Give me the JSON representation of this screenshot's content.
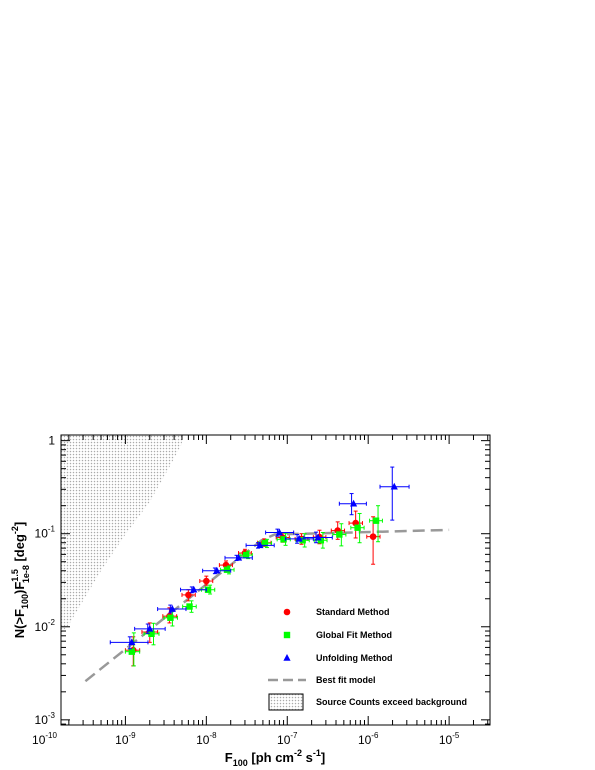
{
  "chart_data": {
    "type": "scatter",
    "x_scale": "log",
    "y_scale": "log",
    "xlim": [
      1.6e-10,
      3.2e-05
    ],
    "ylim": [
      0.00088,
      1.15
    ],
    "grid": false,
    "legend_placement": "bottom-right",
    "x_ticks": [
      {
        "value": 1e-10,
        "base": "10",
        "exp": "-10"
      },
      {
        "value": 1e-09,
        "base": "10",
        "exp": "-9"
      },
      {
        "value": 1e-08,
        "base": "10",
        "exp": "-8"
      },
      {
        "value": 1e-07,
        "base": "10",
        "exp": "-7"
      },
      {
        "value": 1e-06,
        "base": "10",
        "exp": "-6"
      },
      {
        "value": 1e-05,
        "base": "10",
        "exp": "-5"
      }
    ],
    "y_ticks": [
      {
        "value": 0.001,
        "base": "10",
        "exp": "-3"
      },
      {
        "value": 0.01,
        "base": "10",
        "exp": "-2"
      },
      {
        "value": 0.1,
        "base": "10",
        "exp": "-1"
      },
      {
        "value": 1,
        "base": "1",
        "exp": ""
      }
    ],
    "xlabel": {
      "main": "F",
      "sub": "100",
      "rest1": " [ph cm",
      "sup1": "-2",
      "rest2": " s",
      "sup2": "-1",
      "rest3": "]"
    },
    "ylabel": {
      "p1": "N(>F",
      "sub1": "100",
      "p2": ")F",
      "sup": "1.5",
      "sub2": "1e-8",
      "p3": " [deg",
      "sup2": "-2",
      "p4": "]"
    },
    "series": [
      {
        "name": "Standard Method",
        "marker": "circle",
        "color": "#ff0000",
        "points": [
          {
            "x": 1.25e-09,
            "y": 0.0056,
            "ylo": 0.0038,
            "yhi": 0.0078,
            "xlo": 1e-09,
            "xhi": 1.5e-09
          },
          {
            "x": 2e-09,
            "y": 0.0088,
            "ylo": 0.0068,
            "yhi": 0.011,
            "xlo": 1.6e-09,
            "xhi": 2.5e-09
          },
          {
            "x": 3.5e-09,
            "y": 0.013,
            "ylo": 0.011,
            "yhi": 0.016,
            "xlo": 2.9e-09,
            "xhi": 4.3e-09
          },
          {
            "x": 6e-09,
            "y": 0.022,
            "ylo": 0.019,
            "yhi": 0.025,
            "xlo": 5e-09,
            "xhi": 7.3e-09
          },
          {
            "x": 1e-08,
            "y": 0.031,
            "ylo": 0.028,
            "yhi": 0.035,
            "xlo": 8.3e-09,
            "xhi": 1.2e-08
          },
          {
            "x": 1.75e-08,
            "y": 0.046,
            "ylo": 0.042,
            "yhi": 0.051,
            "xlo": 1.45e-08,
            "xhi": 2.1e-08
          },
          {
            "x": 3e-08,
            "y": 0.062,
            "ylo": 0.057,
            "yhi": 0.068,
            "xlo": 2.5e-08,
            "xhi": 3.6e-08
          },
          {
            "x": 5.2e-08,
            "y": 0.08,
            "ylo": 0.073,
            "yhi": 0.088,
            "xlo": 4.3e-08,
            "xhi": 6.3e-08
          },
          {
            "x": 8.8e-08,
            "y": 0.091,
            "ylo": 0.081,
            "yhi": 0.102,
            "xlo": 7.3e-08,
            "xhi": 1.06e-07
          },
          {
            "x": 1.5e-07,
            "y": 0.088,
            "ylo": 0.077,
            "yhi": 0.1,
            "xlo": 1.25e-07,
            "xhi": 1.8e-07
          },
          {
            "x": 2.5e-07,
            "y": 0.092,
            "ylo": 0.078,
            "yhi": 0.109,
            "xlo": 2.1e-07,
            "xhi": 3e-07
          },
          {
            "x": 4.2e-07,
            "y": 0.108,
            "ylo": 0.087,
            "yhi": 0.134,
            "xlo": 3.5e-07,
            "xhi": 5.1e-07
          },
          {
            "x": 7e-07,
            "y": 0.13,
            "ylo": 0.09,
            "yhi": 0.175,
            "xlo": 5.8e-07,
            "xhi": 8.5e-07
          },
          {
            "x": 1.15e-06,
            "y": 0.093,
            "ylo": 0.047,
            "yhi": 0.152,
            "xlo": 9.6e-07,
            "xhi": 1.4e-06
          }
        ]
      },
      {
        "name": "Global Fit Method",
        "marker": "square",
        "color": "#00ff00",
        "points": [
          {
            "x": 1.2e-09,
            "y": 0.0054,
            "ylo": 0.0038,
            "yhi": 0.0086,
            "xlo": 1e-09,
            "xhi": 1.5e-09
          },
          {
            "x": 2.1e-09,
            "y": 0.0084,
            "ylo": 0.0064,
            "yhi": 0.0109,
            "xlo": 1.7e-09,
            "xhi": 2.6e-09
          },
          {
            "x": 3.6e-09,
            "y": 0.0125,
            "ylo": 0.0102,
            "yhi": 0.0156,
            "xlo": 3e-09,
            "xhi": 4.4e-09
          },
          {
            "x": 6.2e-09,
            "y": 0.0165,
            "ylo": 0.0143,
            "yhi": 0.019,
            "xlo": 5.1e-09,
            "xhi": 7.5e-09
          },
          {
            "x": 1.05e-08,
            "y": 0.025,
            "ylo": 0.0225,
            "yhi": 0.028,
            "xlo": 8.7e-09,
            "xhi": 1.27e-08
          },
          {
            "x": 1.8e-08,
            "y": 0.041,
            "ylo": 0.037,
            "yhi": 0.045,
            "xlo": 1.5e-08,
            "xhi": 2.2e-08
          },
          {
            "x": 3.1e-08,
            "y": 0.059,
            "ylo": 0.054,
            "yhi": 0.065,
            "xlo": 2.6e-08,
            "xhi": 3.7e-08
          },
          {
            "x": 5.3e-08,
            "y": 0.079,
            "ylo": 0.071,
            "yhi": 0.087,
            "xlo": 4.4e-08,
            "xhi": 6.4e-08
          },
          {
            "x": 9e-08,
            "y": 0.087,
            "ylo": 0.075,
            "yhi": 0.101,
            "xlo": 7.5e-08,
            "xhi": 1.09e-07
          },
          {
            "x": 1.55e-07,
            "y": 0.085,
            "ylo": 0.072,
            "yhi": 0.1,
            "xlo": 1.28e-07,
            "xhi": 1.87e-07
          },
          {
            "x": 2.6e-07,
            "y": 0.085,
            "ylo": 0.07,
            "yhi": 0.103,
            "xlo": 2.15e-07,
            "xhi": 3.1e-07
          },
          {
            "x": 4.4e-07,
            "y": 0.098,
            "ylo": 0.074,
            "yhi": 0.128,
            "xlo": 3.65e-07,
            "xhi": 5.3e-07
          },
          {
            "x": 7.4e-07,
            "y": 0.116,
            "ylo": 0.08,
            "yhi": 0.165,
            "xlo": 6.1e-07,
            "xhi": 8.9e-07
          },
          {
            "x": 1.25e-06,
            "y": 0.138,
            "ylo": 0.082,
            "yhi": 0.2,
            "xlo": 1.04e-06,
            "xhi": 1.5e-06
          }
        ]
      },
      {
        "name": "Unfolding Method",
        "marker": "triangle",
        "color": "#0000ff",
        "points": [
          {
            "x": 1.2e-09,
            "y": 0.0068,
            "ylo": 0.0058,
            "yhi": 0.0078,
            "xlo": 6.5e-10,
            "xhi": 1.9e-09
          },
          {
            "x": 2e-09,
            "y": 0.0095,
            "ylo": 0.0085,
            "yhi": 0.0107,
            "xlo": 1.3e-09,
            "xhi": 3.1e-09
          },
          {
            "x": 3.8e-09,
            "y": 0.0155,
            "ylo": 0.0141,
            "yhi": 0.0171,
            "xlo": 2.5e-09,
            "xhi": 5.6e-09
          },
          {
            "x": 7e-09,
            "y": 0.025,
            "ylo": 0.0232,
            "yhi": 0.0268,
            "xlo": 4.8e-09,
            "xhi": 1e-08
          },
          {
            "x": 1.35e-08,
            "y": 0.04,
            "ylo": 0.0372,
            "yhi": 0.0428,
            "xlo": 9e-09,
            "xhi": 2e-08
          },
          {
            "x": 2.5e-08,
            "y": 0.055,
            "ylo": 0.0515,
            "yhi": 0.0586,
            "xlo": 1.7e-08,
            "xhi": 3.7e-08
          },
          {
            "x": 4.6e-08,
            "y": 0.075,
            "ylo": 0.07,
            "yhi": 0.08,
            "xlo": 3.1e-08,
            "xhi": 6.9e-08
          },
          {
            "x": 8e-08,
            "y": 0.103,
            "ylo": 0.094,
            "yhi": 0.112,
            "xlo": 5.4e-08,
            "xhi": 1.2e-07
          },
          {
            "x": 1.4e-07,
            "y": 0.088,
            "ylo": 0.079,
            "yhi": 0.098,
            "xlo": 9.5e-08,
            "xhi": 2.1e-07
          },
          {
            "x": 2.4e-07,
            "y": 0.091,
            "ylo": 0.08,
            "yhi": 0.104,
            "xlo": 1.6e-07,
            "xhi": 3.6e-07
          },
          {
            "x": 6.6e-07,
            "y": 0.21,
            "ylo": 0.16,
            "yhi": 0.27,
            "xlo": 4.4e-07,
            "xhi": 9.5e-07
          },
          {
            "x": 2.1e-06,
            "y": 0.32,
            "ylo": 0.14,
            "yhi": 0.52,
            "xlo": 1.4e-06,
            "xhi": 3.2e-06
          }
        ]
      }
    ],
    "model": {
      "name": "Best fit model",
      "color": "#999999",
      "style": "dashed",
      "points": [
        {
          "x": 3.2e-10,
          "y": 0.0026
        },
        {
          "x": 4.8e-08,
          "y": 0.085
        },
        {
          "x": 7e-08,
          "y": 0.098
        },
        {
          "x": 1e-05,
          "y": 0.11
        }
      ]
    },
    "background_region": {
      "name": "Source Counts exceed background",
      "pattern": "dotted",
      "color": "#aaaaaa",
      "boundary": [
        {
          "x": 1.6e-10,
          "y": 0.0086
        },
        {
          "x": 2e-10,
          "y": 0.0105
        },
        {
          "x": 5e-10,
          "y": 0.04
        },
        {
          "x": 1e-09,
          "y": 0.098
        },
        {
          "x": 2e-09,
          "y": 0.22
        },
        {
          "x": 3.5e-09,
          "y": 0.52
        },
        {
          "x": 4.9e-09,
          "y": 0.9
        },
        {
          "x": 5.3e-09,
          "y": 1.15
        }
      ]
    },
    "legend": [
      {
        "label": "Standard Method",
        "kind": "circle",
        "color": "#ff0000"
      },
      {
        "label": "Global Fit Method",
        "kind": "square",
        "color": "#00ff00"
      },
      {
        "label": "Unfolding Method",
        "kind": "triangle",
        "color": "#0000ff"
      },
      {
        "label": "Best fit model",
        "kind": "dash",
        "color": "#999999"
      },
      {
        "label": "Source Counts exceed background",
        "kind": "box",
        "color": "#aaaaaa"
      }
    ]
  }
}
